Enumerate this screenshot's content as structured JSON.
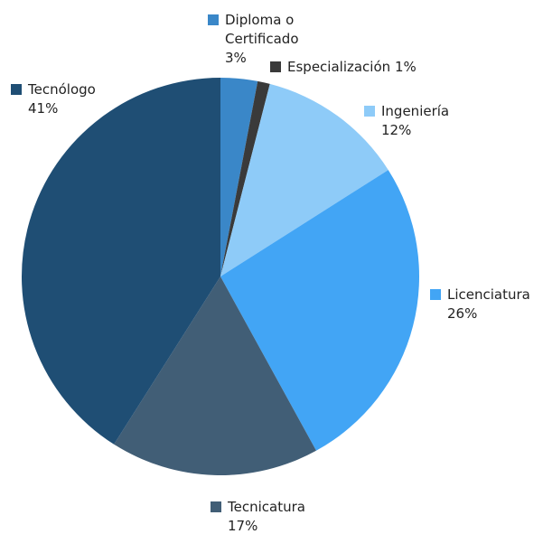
{
  "chart_data": {
    "type": "pie",
    "categories": [
      "Diploma o Certificado",
      "Especialización",
      "Ingeniería",
      "Licenciatura",
      "Tecnicatura",
      "Tecnólogo"
    ],
    "values": [
      3,
      1,
      12,
      26,
      17,
      41
    ],
    "value_labels": [
      "3%",
      "1%",
      "12%",
      "26%",
      "17%",
      "41%"
    ],
    "colors": [
      "#3a87c8",
      "#3a3a3a",
      "#8ecbf8",
      "#42a5f5",
      "#415e76",
      "#1f4e74"
    ]
  }
}
